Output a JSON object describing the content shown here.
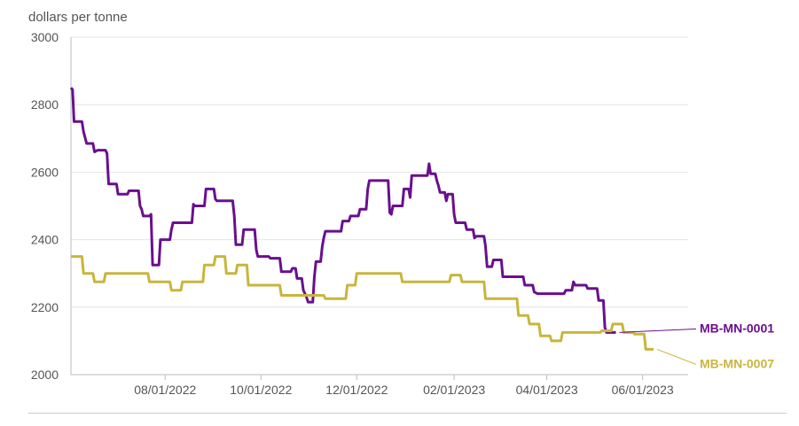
{
  "chart_data": {
    "type": "line",
    "ylabel": "dollars per tonne",
    "ylim": [
      2000,
      3000
    ],
    "y_ticks": [
      2000,
      2200,
      2400,
      2600,
      2800,
      3000
    ],
    "x_range": [
      "2022-06-02",
      "2023-06-30"
    ],
    "x_ticks": [
      {
        "date": "2022-08-01",
        "label": "08/01/2022"
      },
      {
        "date": "2022-10-01",
        "label": "10/01/2022"
      },
      {
        "date": "2022-12-01",
        "label": "12/01/2022"
      },
      {
        "date": "2023-02-01",
        "label": "02/01/2023"
      },
      {
        "date": "2023-04-01",
        "label": "04/01/2023"
      },
      {
        "date": "2023-06-01",
        "label": "06/01/2023"
      }
    ],
    "grid": true,
    "series": [
      {
        "name": "MB-MN-0001",
        "color": "#6a0f8e",
        "points": [
          [
            "2022-06-02",
            2850
          ],
          [
            "2022-06-03",
            2845
          ],
          [
            "2022-06-04",
            2750
          ],
          [
            "2022-06-09",
            2750
          ],
          [
            "2022-06-10",
            2720
          ],
          [
            "2022-06-12",
            2685
          ],
          [
            "2022-06-16",
            2685
          ],
          [
            "2022-06-17",
            2660
          ],
          [
            "2022-06-19",
            2665
          ],
          [
            "2022-06-24",
            2665
          ],
          [
            "2022-06-25",
            2655
          ],
          [
            "2022-06-26",
            2565
          ],
          [
            "2022-07-01",
            2565
          ],
          [
            "2022-07-02",
            2535
          ],
          [
            "2022-07-08",
            2535
          ],
          [
            "2022-07-09",
            2545
          ],
          [
            "2022-07-15",
            2545
          ],
          [
            "2022-07-16",
            2500
          ],
          [
            "2022-07-17",
            2490
          ],
          [
            "2022-07-18",
            2470
          ],
          [
            "2022-07-22",
            2470
          ],
          [
            "2022-07-23",
            2475
          ],
          [
            "2022-07-24",
            2325
          ],
          [
            "2022-07-28",
            2325
          ],
          [
            "2022-07-29",
            2400
          ],
          [
            "2022-08-04",
            2400
          ],
          [
            "2022-08-05",
            2430
          ],
          [
            "2022-08-06",
            2450
          ],
          [
            "2022-08-18",
            2450
          ],
          [
            "2022-08-19",
            2505
          ],
          [
            "2022-08-20",
            2500
          ],
          [
            "2022-08-26",
            2500
          ],
          [
            "2022-08-27",
            2550
          ],
          [
            "2022-09-01",
            2550
          ],
          [
            "2022-09-02",
            2520
          ],
          [
            "2022-09-03",
            2515
          ],
          [
            "2022-09-13",
            2515
          ],
          [
            "2022-09-14",
            2470
          ],
          [
            "2022-09-15",
            2385
          ],
          [
            "2022-09-19",
            2385
          ],
          [
            "2022-09-20",
            2430
          ],
          [
            "2022-09-27",
            2430
          ],
          [
            "2022-09-28",
            2370
          ],
          [
            "2022-09-29",
            2350
          ],
          [
            "2022-10-06",
            2350
          ],
          [
            "2022-10-07",
            2345
          ],
          [
            "2022-10-13",
            2345
          ],
          [
            "2022-10-14",
            2305
          ],
          [
            "2022-10-20",
            2305
          ],
          [
            "2022-10-21",
            2315
          ],
          [
            "2022-10-23",
            2315
          ],
          [
            "2022-10-24",
            2285
          ],
          [
            "2022-10-27",
            2285
          ],
          [
            "2022-10-28",
            2250
          ],
          [
            "2022-10-30",
            2230
          ],
          [
            "2022-10-31",
            2215
          ],
          [
            "2022-11-03",
            2215
          ],
          [
            "2022-11-04",
            2290
          ],
          [
            "2022-11-05",
            2335
          ],
          [
            "2022-11-08",
            2335
          ],
          [
            "2022-11-09",
            2380
          ],
          [
            "2022-11-10",
            2405
          ],
          [
            "2022-11-11",
            2425
          ],
          [
            "2022-11-21",
            2425
          ],
          [
            "2022-11-22",
            2455
          ],
          [
            "2022-11-26",
            2455
          ],
          [
            "2022-11-27",
            2470
          ],
          [
            "2022-12-02",
            2470
          ],
          [
            "2022-12-03",
            2490
          ],
          [
            "2022-12-07",
            2490
          ],
          [
            "2022-12-08",
            2550
          ],
          [
            "2022-12-09",
            2575
          ],
          [
            "2022-12-21",
            2575
          ],
          [
            "2022-12-22",
            2480
          ],
          [
            "2022-12-23",
            2475
          ],
          [
            "2022-12-24",
            2500
          ],
          [
            "2022-12-30",
            2500
          ],
          [
            "2022-12-31",
            2550
          ],
          [
            "2023-01-03",
            2550
          ],
          [
            "2023-01-04",
            2525
          ],
          [
            "2023-01-05",
            2590
          ],
          [
            "2023-01-15",
            2590
          ],
          [
            "2023-01-16",
            2625
          ],
          [
            "2023-01-17",
            2595
          ],
          [
            "2023-01-20",
            2595
          ],
          [
            "2023-01-21",
            2575
          ],
          [
            "2023-01-22",
            2560
          ],
          [
            "2023-01-23",
            2540
          ],
          [
            "2023-01-26",
            2540
          ],
          [
            "2023-01-27",
            2515
          ],
          [
            "2023-01-28",
            2535
          ],
          [
            "2023-01-31",
            2535
          ],
          [
            "2023-02-01",
            2475
          ],
          [
            "2023-02-02",
            2450
          ],
          [
            "2023-02-08",
            2450
          ],
          [
            "2023-02-09",
            2430
          ],
          [
            "2023-02-13",
            2430
          ],
          [
            "2023-02-14",
            2405
          ],
          [
            "2023-02-15",
            2410
          ],
          [
            "2023-02-20",
            2410
          ],
          [
            "2023-02-21",
            2380
          ],
          [
            "2023-02-22",
            2320
          ],
          [
            "2023-02-25",
            2320
          ],
          [
            "2023-02-26",
            2340
          ],
          [
            "2023-03-03",
            2340
          ],
          [
            "2023-03-04",
            2290
          ],
          [
            "2023-03-17",
            2290
          ],
          [
            "2023-03-18",
            2265
          ],
          [
            "2023-03-23",
            2265
          ],
          [
            "2023-03-24",
            2245
          ],
          [
            "2023-03-26",
            2240
          ],
          [
            "2023-04-12",
            2240
          ],
          [
            "2023-04-13",
            2250
          ],
          [
            "2023-04-17",
            2250
          ],
          [
            "2023-04-18",
            2275
          ],
          [
            "2023-04-19",
            2265
          ],
          [
            "2023-04-26",
            2265
          ],
          [
            "2023-04-27",
            2255
          ],
          [
            "2023-05-03",
            2255
          ],
          [
            "2023-05-04",
            2220
          ],
          [
            "2023-05-07",
            2220
          ],
          [
            "2023-05-08",
            2140
          ],
          [
            "2023-05-09",
            2125
          ],
          [
            "2023-05-15",
            2125
          ]
        ]
      },
      {
        "name": "MB-MN-0007",
        "color": "#c9b53c",
        "points": [
          [
            "2022-06-02",
            2350
          ],
          [
            "2022-06-09",
            2350
          ],
          [
            "2022-06-10",
            2300
          ],
          [
            "2022-06-16",
            2300
          ],
          [
            "2022-06-17",
            2275
          ],
          [
            "2022-06-23",
            2275
          ],
          [
            "2022-06-24",
            2300
          ],
          [
            "2022-07-21",
            2300
          ],
          [
            "2022-07-22",
            2275
          ],
          [
            "2022-08-04",
            2275
          ],
          [
            "2022-08-05",
            2250
          ],
          [
            "2022-08-11",
            2250
          ],
          [
            "2022-08-12",
            2275
          ],
          [
            "2022-08-25",
            2275
          ],
          [
            "2022-08-26",
            2325
          ],
          [
            "2022-09-01",
            2325
          ],
          [
            "2022-09-02",
            2350
          ],
          [
            "2022-09-08",
            2350
          ],
          [
            "2022-09-09",
            2300
          ],
          [
            "2022-09-15",
            2300
          ],
          [
            "2022-09-16",
            2325
          ],
          [
            "2022-09-22",
            2325
          ],
          [
            "2022-09-23",
            2265
          ],
          [
            "2022-10-13",
            2265
          ],
          [
            "2022-10-14",
            2235
          ],
          [
            "2022-11-10",
            2235
          ],
          [
            "2022-11-11",
            2225
          ],
          [
            "2022-11-24",
            2225
          ],
          [
            "2022-11-25",
            2265
          ],
          [
            "2022-11-30",
            2265
          ],
          [
            "2022-12-01",
            2300
          ],
          [
            "2022-12-29",
            2300
          ],
          [
            "2022-12-30",
            2275
          ],
          [
            "2023-01-29",
            2275
          ],
          [
            "2023-01-30",
            2295
          ],
          [
            "2023-02-05",
            2295
          ],
          [
            "2023-02-06",
            2275
          ],
          [
            "2023-02-20",
            2275
          ],
          [
            "2023-02-21",
            2225
          ],
          [
            "2023-03-13",
            2225
          ],
          [
            "2023-03-14",
            2175
          ],
          [
            "2023-03-20",
            2175
          ],
          [
            "2023-03-21",
            2150
          ],
          [
            "2023-03-27",
            2150
          ],
          [
            "2023-03-28",
            2115
          ],
          [
            "2023-04-03",
            2115
          ],
          [
            "2023-04-04",
            2100
          ],
          [
            "2023-04-10",
            2100
          ],
          [
            "2023-04-11",
            2125
          ],
          [
            "2023-05-05",
            2125
          ],
          [
            "2023-05-06",
            2130
          ],
          [
            "2023-05-12",
            2130
          ],
          [
            "2023-05-13",
            2150
          ],
          [
            "2023-05-19",
            2150
          ],
          [
            "2023-05-20",
            2125
          ],
          [
            "2023-05-26",
            2125
          ],
          [
            "2023-05-27",
            2120
          ],
          [
            "2023-06-02",
            2120
          ],
          [
            "2023-06-03",
            2075
          ],
          [
            "2023-06-08",
            2075
          ]
        ]
      }
    ]
  }
}
